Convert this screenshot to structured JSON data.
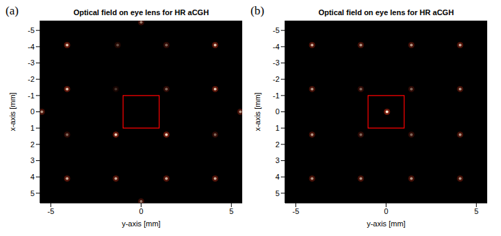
{
  "chart_data": [
    {
      "type": "scatter",
      "title": "Optical field on eye lens for HR aCGH",
      "annotations": [
        "(a)"
      ],
      "xlabel": "y-axis [mm]",
      "ylabel": "x-axis [mm]",
      "xlim": [
        -5.6,
        5.6
      ],
      "xticks": [
        -5,
        0,
        5
      ],
      "ylim": [
        5.6,
        -5.6
      ],
      "yticks": [
        -5,
        -4,
        -3,
        -2,
        -1,
        0,
        1,
        2,
        3,
        4,
        5
      ],
      "grid": false,
      "color": "#ff3a1a",
      "x": [
        -4.1,
        -1.3,
        1.4,
        4.1,
        -4.1,
        -1.4,
        1.4,
        4.1,
        -4.1,
        -1.4,
        1.4,
        4.1,
        -4.1,
        -1.4,
        1.4,
        4.1,
        -5.5,
        5.5,
        0,
        0
      ],
      "y": [
        -4.1,
        -4.1,
        -4.1,
        -4.1,
        -1.4,
        -1.4,
        -1.4,
        -1.4,
        1.4,
        1.4,
        1.4,
        1.4,
        4.1,
        4.1,
        4.1,
        4.1,
        0,
        0,
        -5.5,
        5.5
      ],
      "intensity": [
        0.8,
        0.3,
        0.4,
        0.8,
        0.8,
        0.2,
        0.4,
        0.8,
        0.4,
        0.9,
        0.9,
        0.4,
        0.7,
        0.7,
        0.7,
        0.7,
        0.6,
        0.6,
        0.5,
        0.5
      ],
      "rectangle": {
        "xlim": [
          -1,
          1
        ],
        "ylim": [
          -1,
          1
        ],
        "color": "#ff0000"
      }
    },
    {
      "type": "scatter",
      "title": "Optical field on eye lens for HR aCGH",
      "annotations": [
        "(b)"
      ],
      "xlabel": "y-axis [mm]",
      "ylabel": "x-axis [mm]",
      "xlim": [
        -5.6,
        5.6
      ],
      "xticks": [
        -5,
        0,
        5
      ],
      "ylim": [
        5.6,
        -5.6
      ],
      "yticks": [
        -5,
        -4,
        -3,
        -2,
        -1,
        0,
        1,
        2,
        3,
        4,
        5
      ],
      "grid": false,
      "color": "#ff3a1a",
      "x": [
        -4.1,
        -1.4,
        1.4,
        4.1,
        -4.1,
        -1.4,
        1.4,
        4.1,
        -4.1,
        -1.4,
        1.4,
        4.1,
        -4.1,
        -1.4,
        1.4,
        4.1,
        0.05
      ],
      "y": [
        -4.1,
        -4.1,
        -4.1,
        -4.1,
        -1.4,
        -1.4,
        -1.4,
        -1.4,
        1.4,
        1.4,
        1.4,
        1.4,
        4.1,
        4.1,
        4.1,
        4.1,
        0
      ],
      "intensity": [
        0.7,
        0.6,
        0.6,
        0.7,
        0.6,
        0.4,
        0.4,
        0.6,
        0.6,
        0.4,
        0.4,
        0.6,
        0.6,
        0.6,
        0.6,
        0.6,
        1.0
      ],
      "rectangle": {
        "xlim": [
          -1,
          1
        ],
        "ylim": [
          -1,
          1
        ],
        "color": "#ff0000"
      }
    }
  ]
}
